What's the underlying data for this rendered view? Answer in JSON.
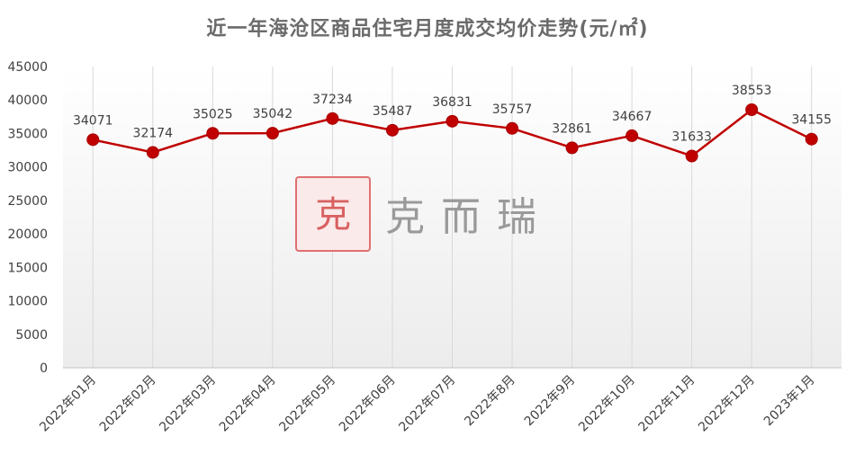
{
  "chart_data": {
    "type": "line",
    "title": "近一年海沧区商品住宅月度成交均价走势(元/㎡)",
    "categories": [
      "2022年01月",
      "2022年02月",
      "2022年03月",
      "2022年04月",
      "2022年05月",
      "2022年06月",
      "2022年07月",
      "2022年8月",
      "2022年9月",
      "2022年10月",
      "2022年11月",
      "2022年12月",
      "2023年1月"
    ],
    "series": [
      {
        "values": [
          34071,
          32174,
          35025,
          35042,
          37234,
          35487,
          36831,
          35757,
          32861,
          34667,
          31633,
          38553,
          34155
        ]
      }
    ],
    "ylim": [
      0,
      45000
    ],
    "yticks": [
      0,
      5000,
      10000,
      15000,
      20000,
      25000,
      30000,
      35000,
      40000,
      45000
    ],
    "grid": "vertical",
    "legend": "none",
    "colors": {
      "line": "#c00000",
      "marker": "#c00000",
      "grid": "#d9d9d9"
    }
  },
  "watermark": {
    "seal_text": "克而瑞",
    "text": "克而瑞",
    "seal_color": "#e07070"
  }
}
